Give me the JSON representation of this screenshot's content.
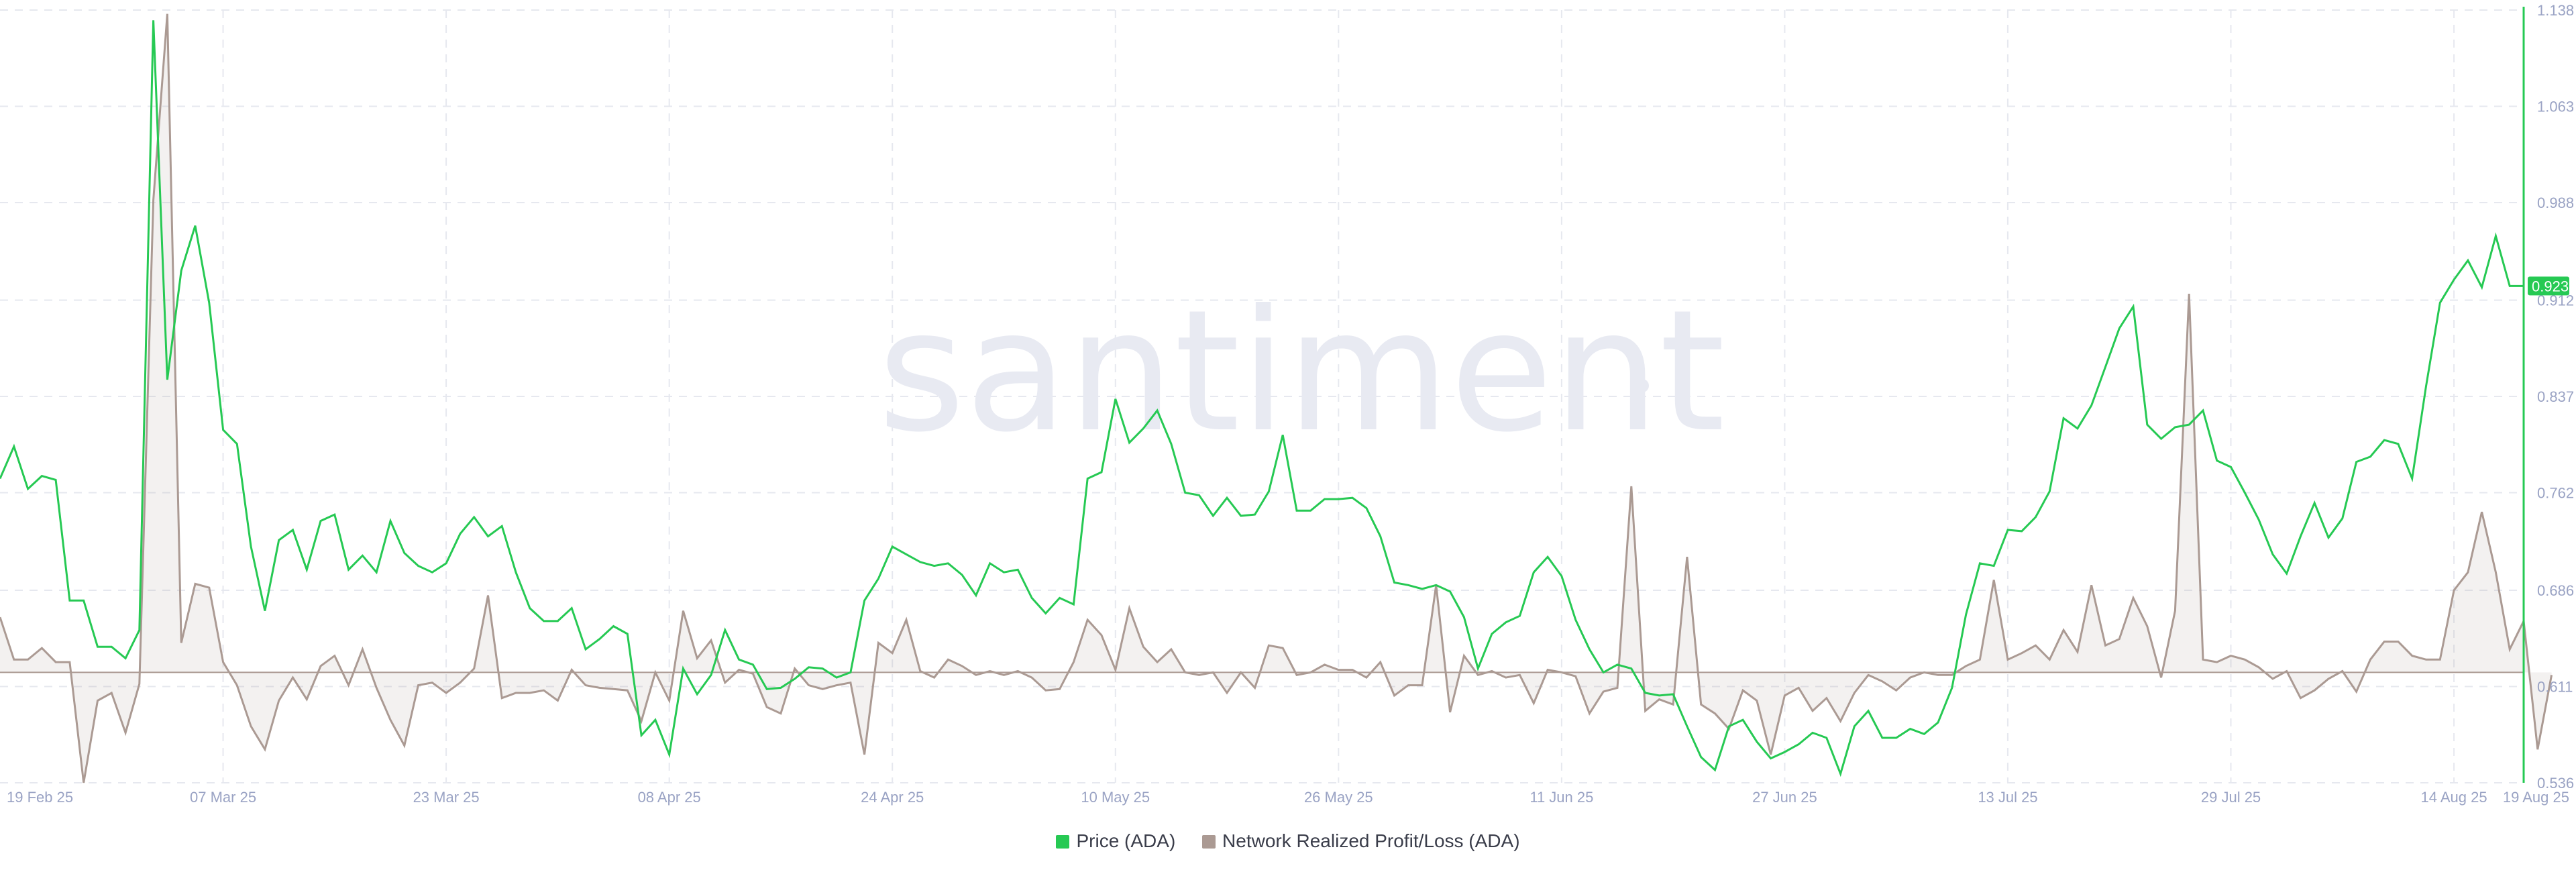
{
  "watermark": "santiment",
  "colors": {
    "price": "#26c953",
    "pnl": "#ab9a93",
    "pnl_fill": "#ab9a93",
    "axis": "#26c953",
    "tick_text": "#9aa3c4",
    "grid": "#e6e8ef",
    "watermark": "#e8eaf2"
  },
  "chart_data": {
    "type": "line",
    "x_start": "2025-02-19",
    "x_end": "2025-08-19",
    "x_ticks": [
      "19 Feb 25",
      "07 Mar 25",
      "23 Mar 25",
      "08 Apr 25",
      "24 Apr 25",
      "10 May 25",
      "26 May 25",
      "11 Jun 25",
      "27 Jun 25",
      "13 Jul 25",
      "29 Jul 25",
      "14 Aug 25",
      "19 Aug 25"
    ],
    "y_ticks": [
      "1.138",
      "1.063",
      "0.988",
      "0.912",
      "0.837",
      "0.762",
      "0.686",
      "0.611",
      "0.536"
    ],
    "ylim": [
      0.536,
      1.138
    ],
    "pnl_baseline": 0.622,
    "current_price_label": "0.923",
    "series": [
      {
        "name": "Price (ADA)",
        "values": [
          0.773,
          0.798,
          0.765,
          0.775,
          0.772,
          0.678,
          0.678,
          0.642,
          0.642,
          0.633,
          0.655,
          1.13,
          0.85,
          0.935,
          0.97,
          0.91,
          0.811,
          0.8,
          0.72,
          0.67,
          0.725,
          0.733,
          0.702,
          0.74,
          0.745,
          0.702,
          0.713,
          0.7,
          0.74,
          0.715,
          0.705,
          0.7,
          0.707,
          0.73,
          0.743,
          0.728,
          0.736,
          0.7,
          0.672,
          0.662,
          0.662,
          0.672,
          0.64,
          0.648,
          0.658,
          0.652,
          0.573,
          0.585,
          0.558,
          0.625,
          0.605,
          0.62,
          0.655,
          0.632,
          0.628,
          0.609,
          0.61,
          0.617,
          0.626,
          0.625,
          0.618,
          0.622,
          0.678,
          0.695,
          0.72,
          0.714,
          0.708,
          0.705,
          0.707,
          0.698,
          0.682,
          0.707,
          0.7,
          0.702,
          0.68,
          0.668,
          0.68,
          0.675,
          0.773,
          0.778,
          0.835,
          0.801,
          0.812,
          0.826,
          0.8,
          0.762,
          0.76,
          0.744,
          0.758,
          0.744,
          0.745,
          0.763,
          0.807,
          0.748,
          0.748,
          0.757,
          0.757,
          0.758,
          0.75,
          0.728,
          0.692,
          0.69,
          0.687,
          0.69,
          0.685,
          0.665,
          0.625,
          0.652,
          0.661,
          0.666,
          0.7,
          0.712,
          0.697,
          0.663,
          0.64,
          0.622,
          0.628,
          0.625,
          0.606,
          0.604,
          0.605,
          0.58,
          0.556,
          0.546,
          0.58,
          0.585,
          0.568,
          0.555,
          0.56,
          0.566,
          0.575,
          0.571,
          0.543,
          0.58,
          0.592,
          0.571,
          0.571,
          0.578,
          0.574,
          0.583,
          0.61,
          0.667,
          0.707,
          0.705,
          0.733,
          0.732,
          0.743,
          0.763,
          0.82,
          0.812,
          0.83,
          0.86,
          0.89,
          0.907,
          0.815,
          0.804,
          0.813,
          0.815,
          0.826,
          0.787,
          0.782,
          0.762,
          0.741,
          0.714,
          0.699,
          0.728,
          0.754,
          0.727,
          0.742,
          0.786,
          0.79,
          0.803,
          0.8,
          0.773,
          0.845,
          0.91,
          0.928,
          0.943,
          0.922,
          0.962,
          0.923,
          0.923
        ]
      },
      {
        "name": "Network Realized Profit/Loss (ADA)",
        "values": [
          0.665,
          0.632,
          0.632,
          0.641,
          0.63,
          0.63,
          0.536,
          0.6,
          0.606,
          0.575,
          0.613,
          0.99,
          1.135,
          0.645,
          0.691,
          0.688,
          0.63,
          0.612,
          0.58,
          0.562,
          0.6,
          0.618,
          0.601,
          0.627,
          0.635,
          0.612,
          0.64,
          0.61,
          0.585,
          0.565,
          0.612,
          0.614,
          0.606,
          0.614,
          0.625,
          0.682,
          0.602,
          0.606,
          0.606,
          0.608,
          0.6,
          0.624,
          0.612,
          0.61,
          0.609,
          0.608,
          0.584,
          0.622,
          0.6,
          0.67,
          0.633,
          0.647,
          0.614,
          0.624,
          0.621,
          0.595,
          0.59,
          0.625,
          0.612,
          0.609,
          0.612,
          0.614,
          0.558,
          0.645,
          0.637,
          0.663,
          0.623,
          0.618,
          0.632,
          0.627,
          0.62,
          0.623,
          0.62,
          0.623,
          0.618,
          0.608,
          0.609,
          0.63,
          0.663,
          0.651,
          0.624,
          0.672,
          0.642,
          0.63,
          0.64,
          0.622,
          0.62,
          0.622,
          0.606,
          0.622,
          0.61,
          0.643,
          0.641,
          0.62,
          0.622,
          0.628,
          0.624,
          0.624,
          0.618,
          0.63,
          0.604,
          0.612,
          0.612,
          0.69,
          0.591,
          0.635,
          0.62,
          0.623,
          0.618,
          0.62,
          0.598,
          0.624,
          0.622,
          0.619,
          0.59,
          0.607,
          0.61,
          0.767,
          0.592,
          0.601,
          0.597,
          0.712,
          0.597,
          0.59,
          0.578,
          0.608,
          0.6,
          0.558,
          0.604,
          0.61,
          0.592,
          0.602,
          0.584,
          0.606,
          0.62,
          0.615,
          0.608,
          0.618,
          0.622,
          0.62,
          0.62,
          0.627,
          0.632,
          0.694,
          0.632,
          0.637,
          0.643,
          0.632,
          0.655,
          0.638,
          0.69,
          0.643,
          0.648,
          0.68,
          0.658,
          0.618,
          0.67,
          0.917,
          0.632,
          0.63,
          0.635,
          0.632,
          0.626,
          0.617,
          0.623,
          0.602,
          0.608,
          0.617,
          0.623,
          0.607,
          0.632,
          0.646,
          0.646,
          0.635,
          0.632,
          0.632,
          0.686,
          0.7,
          0.747,
          0.7,
          0.64,
          0.662,
          0.562,
          0.62
        ]
      }
    ]
  }
}
